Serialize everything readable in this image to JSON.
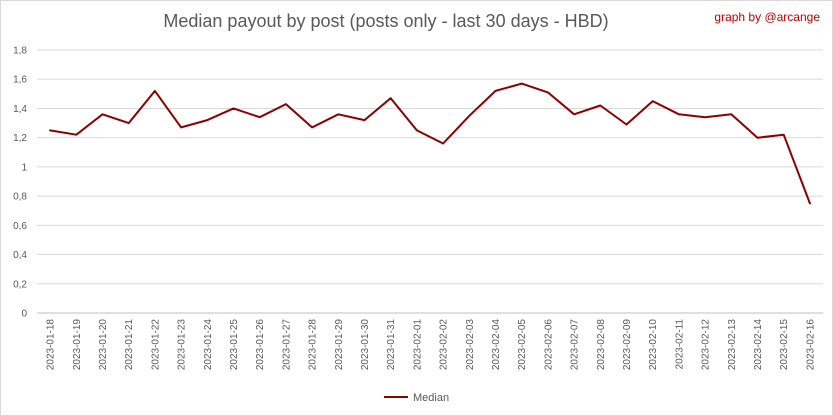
{
  "chart_data": {
    "type": "line",
    "title": "Median payout by post (posts only - last 30 days - HBD)",
    "credit": "graph by @arcange",
    "xlabel": "",
    "ylabel": "",
    "ylim": [
      0,
      1.8
    ],
    "yticks": [
      "0",
      "0,2",
      "0,4",
      "0,6",
      "0,8",
      "1",
      "1,2",
      "1,4",
      "1,6",
      "1,8"
    ],
    "grid": true,
    "legend_position": "bottom",
    "line_color": "#8b0000",
    "categories": [
      "2023-01-18",
      "2023-01-19",
      "2023-01-20",
      "2023-01-21",
      "2023-01-22",
      "2023-01-23",
      "2023-01-24",
      "2023-01-25",
      "2023-01-26",
      "2023-01-27",
      "2023-01-28",
      "2023-01-29",
      "2023-01-30",
      "2023-01-31",
      "2023-02-01",
      "2023-02-02",
      "2023-02-03",
      "2023-02-04",
      "2023-02-05",
      "2023-02-06",
      "2023-02-07",
      "2023-02-08",
      "2023-02-09",
      "2023-02-10",
      "2023-02-11",
      "2023-02-12",
      "2023-02-13",
      "2023-02-14",
      "2023-02-15",
      "2023-02-16"
    ],
    "series": [
      {
        "name": "Median",
        "values": [
          1.25,
          1.22,
          1.36,
          1.3,
          1.52,
          1.27,
          1.32,
          1.4,
          1.34,
          1.43,
          1.27,
          1.36,
          1.32,
          1.47,
          1.25,
          1.16,
          1.35,
          1.52,
          1.57,
          1.51,
          1.36,
          1.42,
          1.29,
          1.45,
          1.36,
          1.34,
          1.36,
          1.2,
          1.22,
          0.75
        ]
      }
    ]
  }
}
